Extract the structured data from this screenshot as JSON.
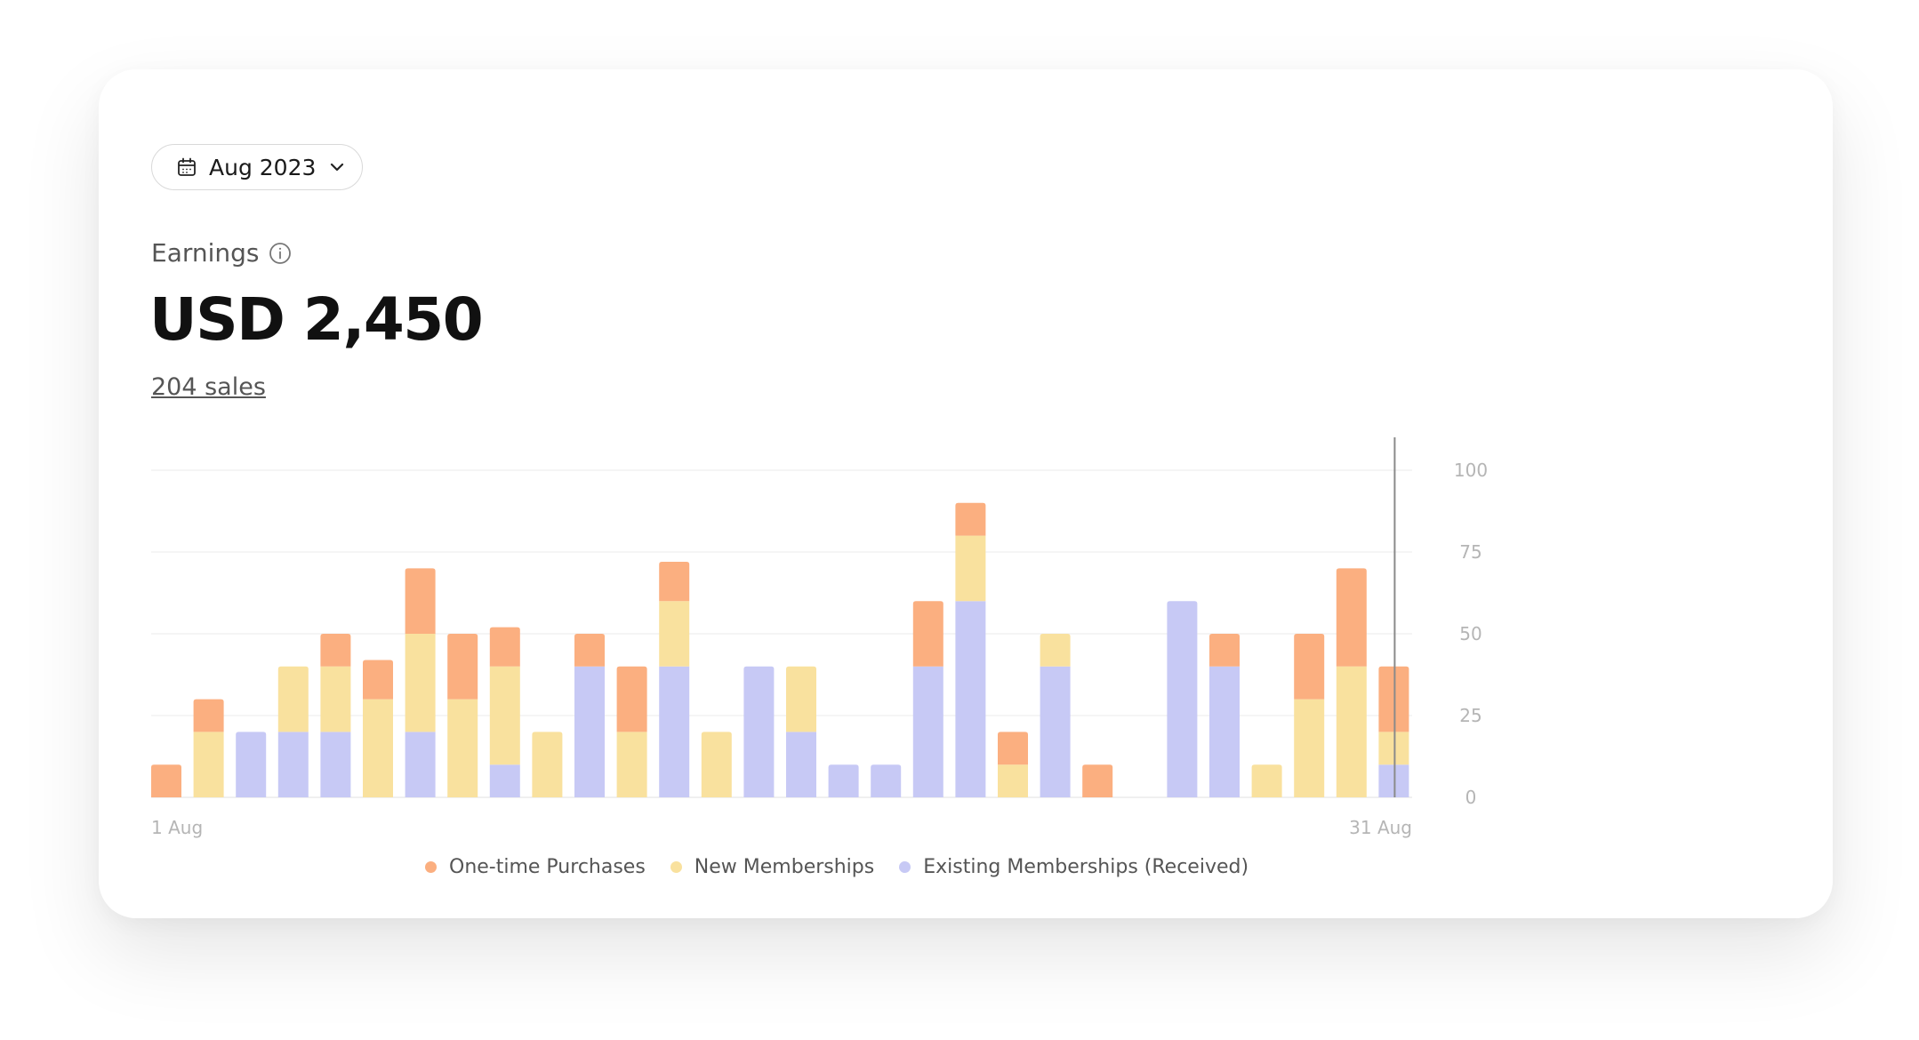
{
  "date_selector": {
    "label": "Aug 2023",
    "icon": "calendar-icon",
    "chevron": "chevron-down-icon"
  },
  "earnings": {
    "label": "Earnings",
    "info_icon": "info-icon",
    "total": "USD 2,450",
    "sales": "204 sales"
  },
  "colors": {
    "one_time": "#FBAF80",
    "new": "#F9E19E",
    "existing": "#C7C9F5"
  },
  "chart_data": {
    "type": "bar",
    "stacked": true,
    "x_tick_labels": [
      "1 Aug",
      "31 Aug"
    ],
    "ylim": [
      0,
      100
    ],
    "yticks": [
      "100",
      "75",
      "50",
      "25",
      "0"
    ],
    "y_axis_position": "right",
    "grid": true,
    "legend_position": "bottom",
    "series": [
      {
        "name": "Existing Memberships (Received)",
        "values": [
          0,
          0,
          20,
          20,
          20,
          0,
          20,
          0,
          10,
          0,
          40,
          0,
          40,
          0,
          40,
          20,
          10,
          10,
          40,
          60,
          0,
          40,
          0,
          0,
          60,
          40,
          0,
          0,
          0,
          10
        ]
      },
      {
        "name": "New Memberships",
        "values": [
          0,
          20,
          0,
          20,
          20,
          30,
          30,
          30,
          30,
          20,
          0,
          20,
          20,
          20,
          0,
          20,
          0,
          0,
          0,
          20,
          10,
          10,
          0,
          0,
          0,
          0,
          10,
          30,
          40,
          10
        ]
      },
      {
        "name": "One-time Purchases",
        "values": [
          10,
          10,
          0,
          0,
          10,
          12,
          20,
          20,
          12,
          0,
          10,
          20,
          12,
          0,
          0,
          0,
          0,
          0,
          20,
          10,
          10,
          0,
          10,
          0,
          0,
          10,
          0,
          20,
          30,
          20
        ]
      }
    ],
    "cursor_at_day": 30
  }
}
